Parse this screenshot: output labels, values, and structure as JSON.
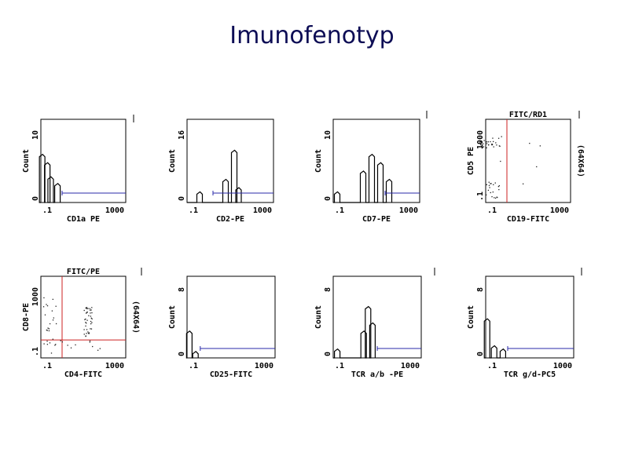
{
  "title": "Imunofenotyp",
  "colors": {
    "trace": "#000000",
    "gate": "#cc2222",
    "marker": "#2a2aa8",
    "title": "#0d0d55"
  },
  "chart_data": [
    {
      "type": "histogram",
      "xlabel": "CD1a PE",
      "ylabel": "Count",
      "xticks": [
        ".1",
        "1000"
      ],
      "yticks": [
        "0",
        "10"
      ],
      "scale": "log",
      "peaks": [
        [
          0.02,
          0.55
        ],
        [
          0.08,
          0.45
        ],
        [
          0.12,
          0.28
        ],
        [
          0.2,
          0.2
        ]
      ],
      "marker_from": 0.25
    },
    {
      "type": "histogram",
      "xlabel": "CD2-PE",
      "ylabel": "Count",
      "xticks": [
        ".1",
        "1000"
      ],
      "yticks": [
        "0",
        "16"
      ],
      "scale": "log",
      "peaks": [
        [
          0.15,
          0.1
        ],
        [
          0.45,
          0.25
        ],
        [
          0.55,
          0.6
        ],
        [
          0.6,
          0.15
        ]
      ],
      "marker_from": 0.3
    },
    {
      "type": "histogram",
      "xlabel": "CD7-PE",
      "ylabel": "Count",
      "xticks": [
        ".1",
        "1000"
      ],
      "yticks": [
        "0",
        "10"
      ],
      "scale": "log",
      "peaks": [
        [
          0.05,
          0.1
        ],
        [
          0.35,
          0.35
        ],
        [
          0.45,
          0.55
        ],
        [
          0.55,
          0.45
        ],
        [
          0.65,
          0.25
        ]
      ],
      "marker_from": 0.6
    },
    {
      "type": "dotplot",
      "xlabel": "CD19-FITC",
      "ylabel": "CD5 PE",
      "xticks": [
        ".1",
        "1000"
      ],
      "yticks": [
        ".1",
        "1000"
      ],
      "scale": "log",
      "plot_title": "FITC/RD1",
      "right_label": "(64X64)",
      "quadrant": [
        0.25,
        0
      ]
    },
    {
      "type": "dotplot",
      "xlabel": "CD4-FITC",
      "ylabel": "CD8-PE",
      "xticks": [
        ".1",
        "1000"
      ],
      "yticks": [
        ".1",
        "1000"
      ],
      "scale": "log",
      "plot_title": "FITC/PE",
      "right_label": "(64X64)",
      "quadrant": [
        0.25,
        0.78
      ]
    },
    {
      "type": "histogram",
      "xlabel": "CD25-FITC",
      "ylabel": "Count",
      "xticks": [
        ".1",
        "1000"
      ],
      "yticks": [
        "0",
        "8"
      ],
      "scale": "log",
      "peaks": [
        [
          0.03,
          0.3
        ],
        [
          0.1,
          0.05
        ]
      ],
      "marker_from": 0.15
    },
    {
      "type": "histogram",
      "xlabel": "TCR a/b -PE",
      "ylabel": "Count",
      "xticks": [
        ".1",
        "1000"
      ],
      "yticks": [
        "0",
        "8"
      ],
      "scale": "log",
      "peaks": [
        [
          0.05,
          0.08
        ],
        [
          0.35,
          0.3
        ],
        [
          0.4,
          0.6
        ],
        [
          0.45,
          0.4
        ]
      ],
      "marker_from": 0.5
    },
    {
      "type": "histogram",
      "xlabel": "TCR g/d-PC5",
      "ylabel": "Count",
      "xticks": [
        ".1",
        "1000"
      ],
      "yticks": [
        "0",
        "8"
      ],
      "scale": "log",
      "peaks": [
        [
          0.02,
          0.45
        ],
        [
          0.1,
          0.12
        ],
        [
          0.2,
          0.08
        ]
      ],
      "marker_from": 0.25
    }
  ]
}
